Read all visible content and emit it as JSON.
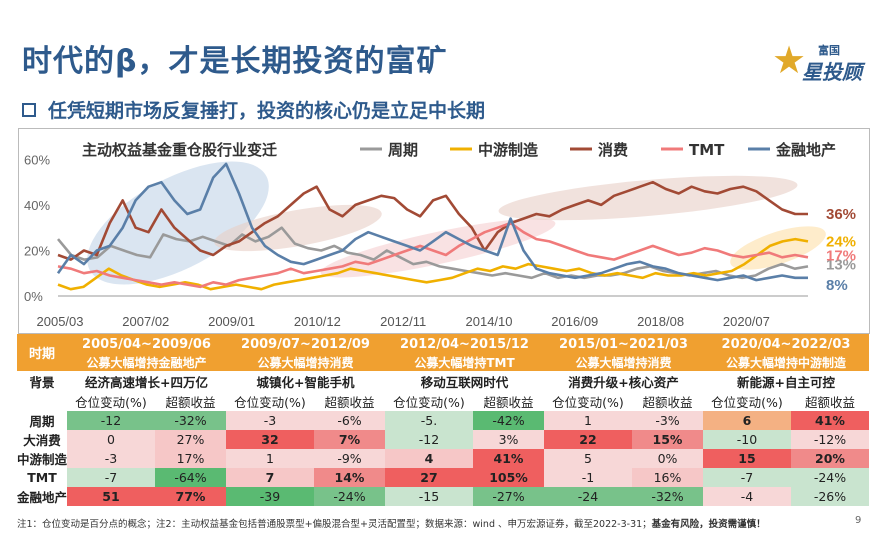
{
  "header": {
    "title": "时代的β，才是长期投资的富矿",
    "subtitle": "任凭短期市场反复捶打，投资的核心仍是立足中长期",
    "logo_small": "富国",
    "logo_big": "星投顾"
  },
  "chart_data": {
    "type": "line",
    "title": "主动权益基金重仓股行业变迁",
    "ylim": [
      0,
      65
    ],
    "yticks": [
      "0%",
      "20%",
      "40%",
      "60%"
    ],
    "x_labels": [
      "2005/03",
      "2007/02",
      "2009/01",
      "2010/12",
      "2012/11",
      "2014/10",
      "2016/09",
      "2018/08",
      "2020/07"
    ],
    "series": [
      {
        "name": "周期",
        "color": "#9a9a9a",
        "end_label": "13%",
        "values": [
          25,
          18,
          16,
          17,
          22,
          20,
          18,
          17,
          27,
          25,
          24,
          26,
          24,
          22,
          27,
          24,
          26,
          30,
          23,
          21,
          20,
          22,
          19,
          18,
          16,
          20,
          17,
          14,
          15,
          13,
          12,
          11,
          10,
          9,
          10,
          9,
          8,
          10,
          8,
          9,
          8,
          9,
          9,
          10,
          12,
          13,
          11,
          10,
          9,
          10,
          11,
          9,
          8,
          9,
          12,
          14,
          12,
          13
        ]
      },
      {
        "name": "中游制造",
        "color": "#f0b000",
        "end_label": "24%",
        "values": [
          5,
          3,
          4,
          8,
          12,
          9,
          7,
          5,
          4,
          5,
          6,
          5,
          3,
          4,
          5,
          4,
          3,
          5,
          6,
          7,
          8,
          9,
          10,
          12,
          11,
          10,
          9,
          8,
          7,
          6,
          7,
          8,
          10,
          12,
          11,
          13,
          12,
          14,
          13,
          12,
          11,
          12,
          10,
          9,
          10,
          9,
          8,
          10,
          9,
          9,
          10,
          9,
          10,
          11,
          14,
          18,
          22,
          24,
          25,
          24
        ]
      },
      {
        "name": "消费",
        "color": "#a24a35",
        "end_label": "36%",
        "values": [
          18,
          16,
          20,
          18,
          32,
          42,
          30,
          28,
          38,
          30,
          25,
          20,
          18,
          22,
          24,
          28,
          32,
          35,
          40,
          45,
          48,
          38,
          35,
          40,
          42,
          44,
          43,
          38,
          35,
          42,
          44,
          36,
          30,
          20,
          28,
          32,
          34,
          36,
          35,
          38,
          40,
          42,
          40,
          44,
          46,
          48,
          50,
          47,
          45,
          48,
          46,
          45,
          47,
          48,
          46,
          42,
          38,
          36,
          36
        ]
      },
      {
        "name": "TMT",
        "color": "#f07a7a",
        "end_label": "17%",
        "values": [
          13,
          12,
          10,
          11,
          9,
          8,
          7,
          6,
          5,
          6,
          5,
          4,
          6,
          5,
          7,
          8,
          9,
          10,
          12,
          10,
          11,
          12,
          13,
          15,
          14,
          16,
          18,
          20,
          22,
          20,
          18,
          22,
          25,
          28,
          30,
          32,
          28,
          25,
          24,
          22,
          20,
          18,
          17,
          16,
          18,
          20,
          22,
          20,
          18,
          19,
          21,
          20,
          18,
          17,
          18,
          19,
          17,
          18,
          17
        ]
      },
      {
        "name": "金融地产",
        "color": "#5a7fa8",
        "end_label": "8%",
        "values": [
          10,
          18,
          14,
          20,
          22,
          30,
          42,
          48,
          50,
          42,
          36,
          38,
          52,
          58,
          45,
          30,
          22,
          18,
          15,
          14,
          16,
          18,
          20,
          25,
          28,
          26,
          24,
          22,
          20,
          24,
          28,
          25,
          22,
          20,
          18,
          34,
          20,
          12,
          10,
          9,
          8,
          9,
          10,
          12,
          14,
          15,
          13,
          12,
          10,
          9,
          8,
          7,
          8,
          9,
          7,
          8,
          9,
          8,
          8
        ]
      }
    ]
  },
  "table": {
    "periods": [
      {
        "label": "2005/04~2009/06",
        "theme": "公募大幅增持金融地产",
        "background": "经济高速增长+四万亿"
      },
      {
        "label": "2009/07~2012/09",
        "theme": "公募大幅增持消费",
        "background": "城镇化+智能手机"
      },
      {
        "label": "2012/04~2015/12",
        "theme": "公募大幅增持TMT",
        "background": "移动互联网时代"
      },
      {
        "label": "2015/01~2021/03",
        "theme": "公募大幅增持消费",
        "background": "消费升级+核心资产"
      },
      {
        "label": "2020/04~2022/03",
        "theme": "公募大幅增持中游制造",
        "background": "新能源+自主可控"
      }
    ],
    "period_header": "时期",
    "background_header": "背景",
    "col_position": "仓位变动(%)",
    "col_excess": "超额收益",
    "rows": [
      {
        "label": "周期",
        "cells": [
          {
            "v": "-12",
            "c": "#78c28a"
          },
          {
            "v": "-32%",
            "c": "#78c28a"
          },
          {
            "v": "-3",
            "c": "#f7d7d7"
          },
          {
            "v": "-6%",
            "c": "#f7d7d7"
          },
          {
            "v": "-5.",
            "c": "#c9e4cf"
          },
          {
            "v": "-42%",
            "c": "#5aba72"
          },
          {
            "v": "1",
            "c": "#f7d7d7"
          },
          {
            "v": "-3%",
            "c": "#f7d7d7"
          },
          {
            "v": "6",
            "c": "#f4b183",
            "b": true
          },
          {
            "v": "41%",
            "c": "#ef5f5f",
            "b": true
          }
        ]
      },
      {
        "label": "大消费",
        "cells": [
          {
            "v": "0",
            "c": "#f7d7d7"
          },
          {
            "v": "27%",
            "c": "#f6c7c7"
          },
          {
            "v": "32",
            "c": "#ef5f5f",
            "b": true
          },
          {
            "v": "7%",
            "c": "#f08a8a",
            "b": true
          },
          {
            "v": "-12",
            "c": "#c9e4cf"
          },
          {
            "v": "3%",
            "c": "#f7d7d7"
          },
          {
            "v": "22",
            "c": "#ef5f5f",
            "b": true
          },
          {
            "v": "15%",
            "c": "#f08a8a",
            "b": true
          },
          {
            "v": "-10",
            "c": "#c9e4cf"
          },
          {
            "v": "-12%",
            "c": "#f7d7d7"
          }
        ]
      },
      {
        "label": "中游制造",
        "cells": [
          {
            "v": "-3",
            "c": "#f7d7d7"
          },
          {
            "v": "17%",
            "c": "#f6c7c7"
          },
          {
            "v": "1",
            "c": "#f7d7d7"
          },
          {
            "v": "-9%",
            "c": "#f7d7d7"
          },
          {
            "v": "4",
            "c": "#f6c7c7",
            "b": true
          },
          {
            "v": "41%",
            "c": "#ef5f5f",
            "b": true
          },
          {
            "v": "5",
            "c": "#f7d7d7"
          },
          {
            "v": "0%",
            "c": "#f7d7d7"
          },
          {
            "v": "15",
            "c": "#ef5f5f",
            "b": true
          },
          {
            "v": "20%",
            "c": "#f08a8a",
            "b": true
          }
        ]
      },
      {
        "label": "TMT",
        "cells": [
          {
            "v": "-7",
            "c": "#c9e4cf"
          },
          {
            "v": "-64%",
            "c": "#5aba72"
          },
          {
            "v": "7",
            "c": "#f6c7c7",
            "b": true
          },
          {
            "v": "14%",
            "c": "#f08a8a",
            "b": true
          },
          {
            "v": "27",
            "c": "#ef5f5f",
            "b": true
          },
          {
            "v": "105%",
            "c": "#ef5f5f",
            "b": true
          },
          {
            "v": "-1",
            "c": "#f7d7d7"
          },
          {
            "v": "16%",
            "c": "#f6c7c7"
          },
          {
            "v": "-7",
            "c": "#c9e4cf"
          },
          {
            "v": "-24%",
            "c": "#c9e4cf"
          }
        ]
      },
      {
        "label": "金融地产",
        "cells": [
          {
            "v": "51",
            "c": "#ef5f5f",
            "b": true
          },
          {
            "v": "77%",
            "c": "#ef5f5f",
            "b": true
          },
          {
            "v": "-39",
            "c": "#5aba72"
          },
          {
            "v": "-24%",
            "c": "#78c28a"
          },
          {
            "v": "-15",
            "c": "#c9e4cf"
          },
          {
            "v": "-27%",
            "c": "#78c28a"
          },
          {
            "v": "-24",
            "c": "#78c28a"
          },
          {
            "v": "-32%",
            "c": "#78c28a"
          },
          {
            "v": "-4",
            "c": "#f7d7d7"
          },
          {
            "v": "-26%",
            "c": "#c9e4cf"
          }
        ]
      }
    ]
  },
  "footnote": {
    "text": "注1：仓位变动是百分点的概念；注2：主动权益基金包括普通股票型+偏股混合型+灵活配置型；数据来源：wind 、申万宏源证券，截至2022-3-31；",
    "warning": "基金有风险，投资需谨慎！"
  },
  "page_number": "9"
}
